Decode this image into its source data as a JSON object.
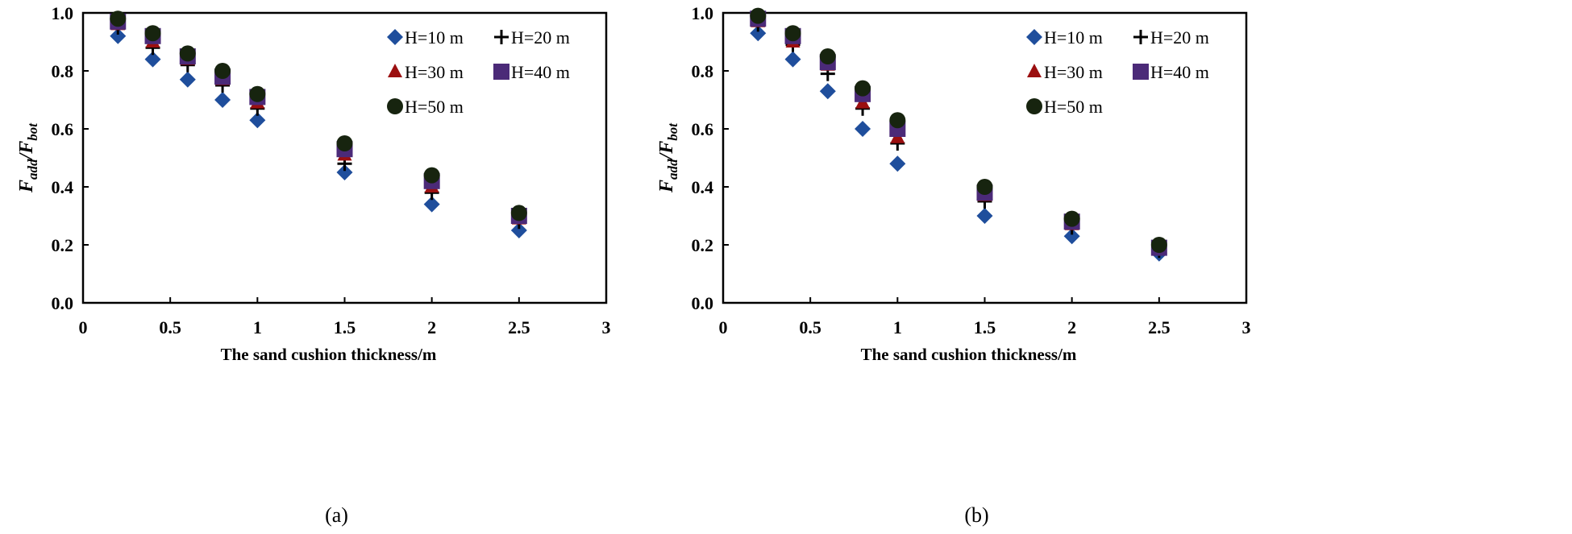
{
  "chart_data": [
    {
      "type": "scatter",
      "caption": "(a)",
      "xlabel": "The sand cushion thickness/m",
      "ylabel_main": "F",
      "ylabel_sub1": "add",
      "ylabel_mid": "/F",
      "ylabel_sub2": "bot",
      "xlim": [
        0,
        3
      ],
      "ylim": [
        0,
        1.0
      ],
      "xticks": [
        "0",
        "0.5",
        "1",
        "1.5",
        "2",
        "2.5",
        "3"
      ],
      "yticks": [
        "0.0",
        "0.2",
        "0.4",
        "0.6",
        "0.8",
        "1.0"
      ],
      "grid": false,
      "legend_position": "top-right",
      "x": [
        0.2,
        0.4,
        0.6,
        0.8,
        1.0,
        1.5,
        2.0,
        2.5
      ],
      "series": [
        {
          "name": "H=10 m",
          "marker": "diamond",
          "color": "#1f4e9c",
          "values": [
            0.92,
            0.84,
            0.77,
            0.7,
            0.63,
            0.45,
            0.34,
            0.25
          ]
        },
        {
          "name": "H=20 m",
          "marker": "plus",
          "color": "#000000",
          "values": [
            0.95,
            0.88,
            0.82,
            0.75,
            0.67,
            0.48,
            0.38,
            0.28
          ]
        },
        {
          "name": "H=30 m",
          "marker": "triangle",
          "color": "#9b0f10",
          "values": [
            0.96,
            0.9,
            0.84,
            0.77,
            0.69,
            0.51,
            0.4,
            0.29
          ]
        },
        {
          "name": "H=40 m",
          "marker": "square",
          "color": "#4b2a78",
          "values": [
            0.97,
            0.92,
            0.85,
            0.78,
            0.71,
            0.53,
            0.42,
            0.3
          ]
        },
        {
          "name": "H=50 m",
          "marker": "circle",
          "color": "#17240f",
          "values": [
            0.98,
            0.93,
            0.86,
            0.8,
            0.72,
            0.55,
            0.44,
            0.31
          ]
        }
      ]
    },
    {
      "type": "scatter",
      "caption": "(b)",
      "xlabel": "The sand cushion thickness/m",
      "ylabel_main": "F",
      "ylabel_sub1": "add",
      "ylabel_mid": "/F",
      "ylabel_sub2": "bot",
      "xlim": [
        0,
        3
      ],
      "ylim": [
        0,
        1.0
      ],
      "xticks": [
        "0",
        "0.5",
        "1",
        "1.5",
        "2",
        "2.5",
        "3"
      ],
      "yticks": [
        "0.0",
        "0.2",
        "0.4",
        "0.6",
        "0.8",
        "1.0"
      ],
      "grid": false,
      "legend_position": "top-right",
      "x": [
        0.2,
        0.4,
        0.6,
        0.8,
        1.0,
        1.5,
        2.0,
        2.5
      ],
      "series": [
        {
          "name": "H=10 m",
          "marker": "diamond",
          "color": "#1f4e9c",
          "values": [
            0.93,
            0.84,
            0.73,
            0.6,
            0.48,
            0.3,
            0.23,
            0.17
          ]
        },
        {
          "name": "H=20 m",
          "marker": "plus",
          "color": "#000000",
          "values": [
            0.96,
            0.89,
            0.79,
            0.67,
            0.55,
            0.35,
            0.26,
            0.18
          ]
        },
        {
          "name": "H=30 m",
          "marker": "triangle",
          "color": "#9b0f10",
          "values": [
            0.97,
            0.9,
            0.82,
            0.69,
            0.57,
            0.37,
            0.27,
            0.19
          ]
        },
        {
          "name": "H=40 m",
          "marker": "square",
          "color": "#4b2a78",
          "values": [
            0.98,
            0.92,
            0.83,
            0.72,
            0.6,
            0.38,
            0.28,
            0.19
          ]
        },
        {
          "name": "H=50 m",
          "marker": "circle",
          "color": "#17240f",
          "values": [
            0.99,
            0.93,
            0.85,
            0.74,
            0.63,
            0.4,
            0.29,
            0.2
          ]
        }
      ]
    }
  ]
}
